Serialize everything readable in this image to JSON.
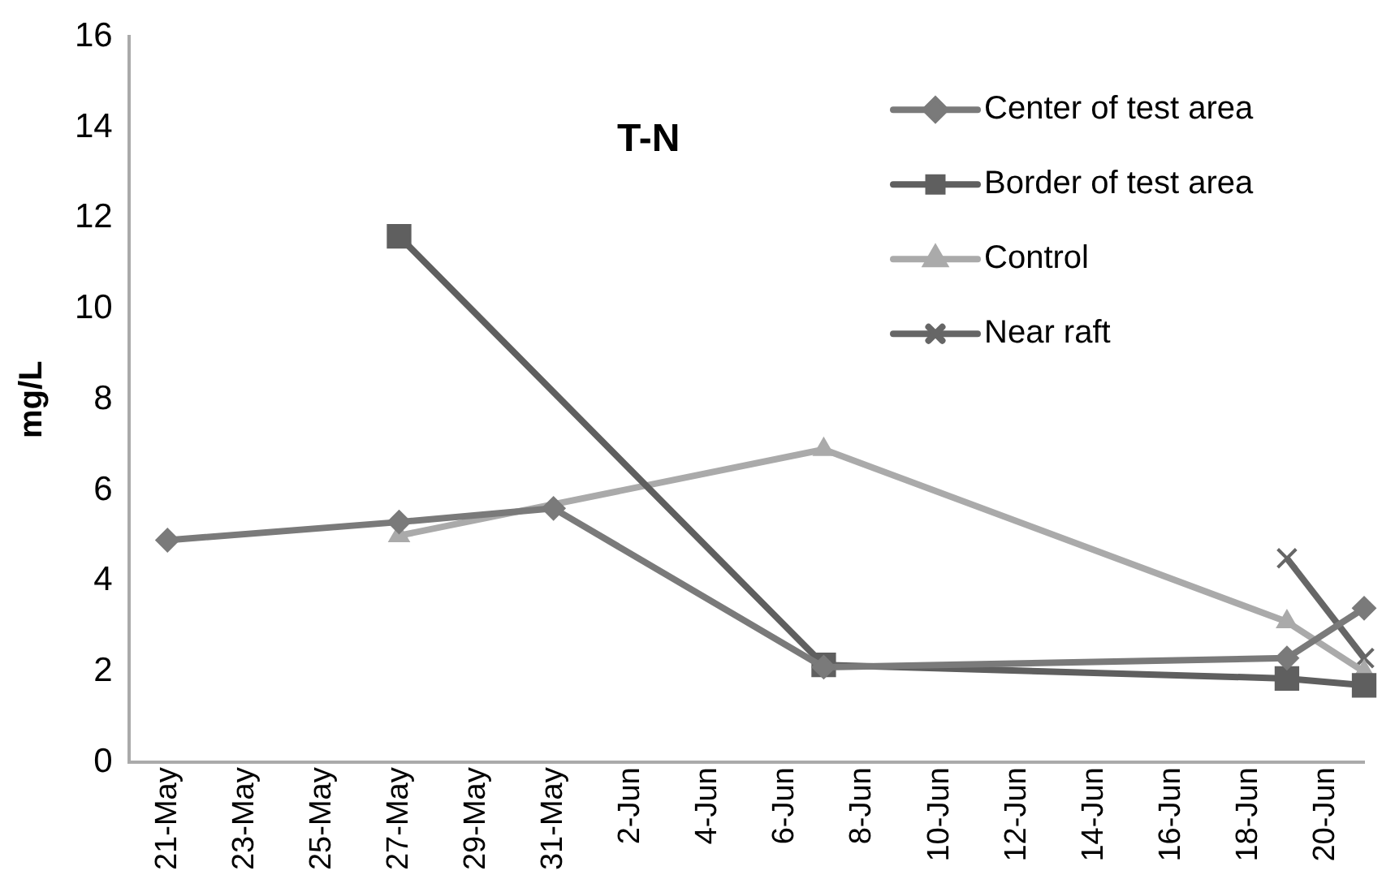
{
  "chart_data": {
    "type": "line",
    "title": "T-N",
    "ylabel": "mg/L",
    "xlim": [
      "--05-20",
      "--06-21"
    ],
    "xticks": [
      {
        "value": "--05-21",
        "label": "21-May"
      },
      {
        "value": "--05-23",
        "label": "23-May"
      },
      {
        "value": "--05-25",
        "label": "25-May"
      },
      {
        "value": "--05-27",
        "label": "27-May"
      },
      {
        "value": "--05-29",
        "label": "29-May"
      },
      {
        "value": "--05-31",
        "label": "31-May"
      },
      {
        "value": "--06-02",
        "label": "2-Jun"
      },
      {
        "value": "--06-04",
        "label": "4-Jun"
      },
      {
        "value": "--06-06",
        "label": "6-Jun"
      },
      {
        "value": "--06-08",
        "label": "8-Jun"
      },
      {
        "value": "--06-10",
        "label": "10-Jun"
      },
      {
        "value": "--06-12",
        "label": "12-Jun"
      },
      {
        "value": "--06-14",
        "label": "14-Jun"
      },
      {
        "value": "--06-16",
        "label": "16-Jun"
      },
      {
        "value": "--06-18",
        "label": "18-Jun"
      },
      {
        "value": "--06-20",
        "label": "20-Jun"
      }
    ],
    "ylim": [
      0,
      16
    ],
    "yticks": [
      0,
      2,
      4,
      6,
      8,
      10,
      12,
      14,
      16
    ],
    "grid": false,
    "legend": "top right",
    "line_style": "solid",
    "series": [
      {
        "name": "Center of test area",
        "color": "#7a7a7a",
        "marker": "diamond",
        "x": [
          "--05-21",
          "--05-27",
          "--05-31",
          "--06-07",
          "--06-19",
          "--06-21"
        ],
        "values": [
          4.9,
          5.3,
          5.6,
          2.1,
          2.3,
          3.4
        ]
      },
      {
        "name": "Border of test area",
        "color": "#5f5f5f",
        "marker": "square",
        "x": [
          "--05-27",
          "--06-07",
          "--06-19",
          "--06-21"
        ],
        "values": [
          11.6,
          2.15,
          1.85,
          1.7
        ]
      },
      {
        "name": "Control",
        "color": "#aaaaaa",
        "marker": "triangle",
        "x": [
          "--05-27",
          "--06-07",
          "--06-19",
          "--06-21"
        ],
        "values": [
          5.0,
          6.9,
          3.1,
          2.0
        ]
      },
      {
        "name": "Near raft",
        "color": "#666666",
        "marker": "cross",
        "x": [
          "--06-19",
          "--06-21"
        ],
        "values": [
          4.5,
          2.3
        ]
      }
    ]
  }
}
